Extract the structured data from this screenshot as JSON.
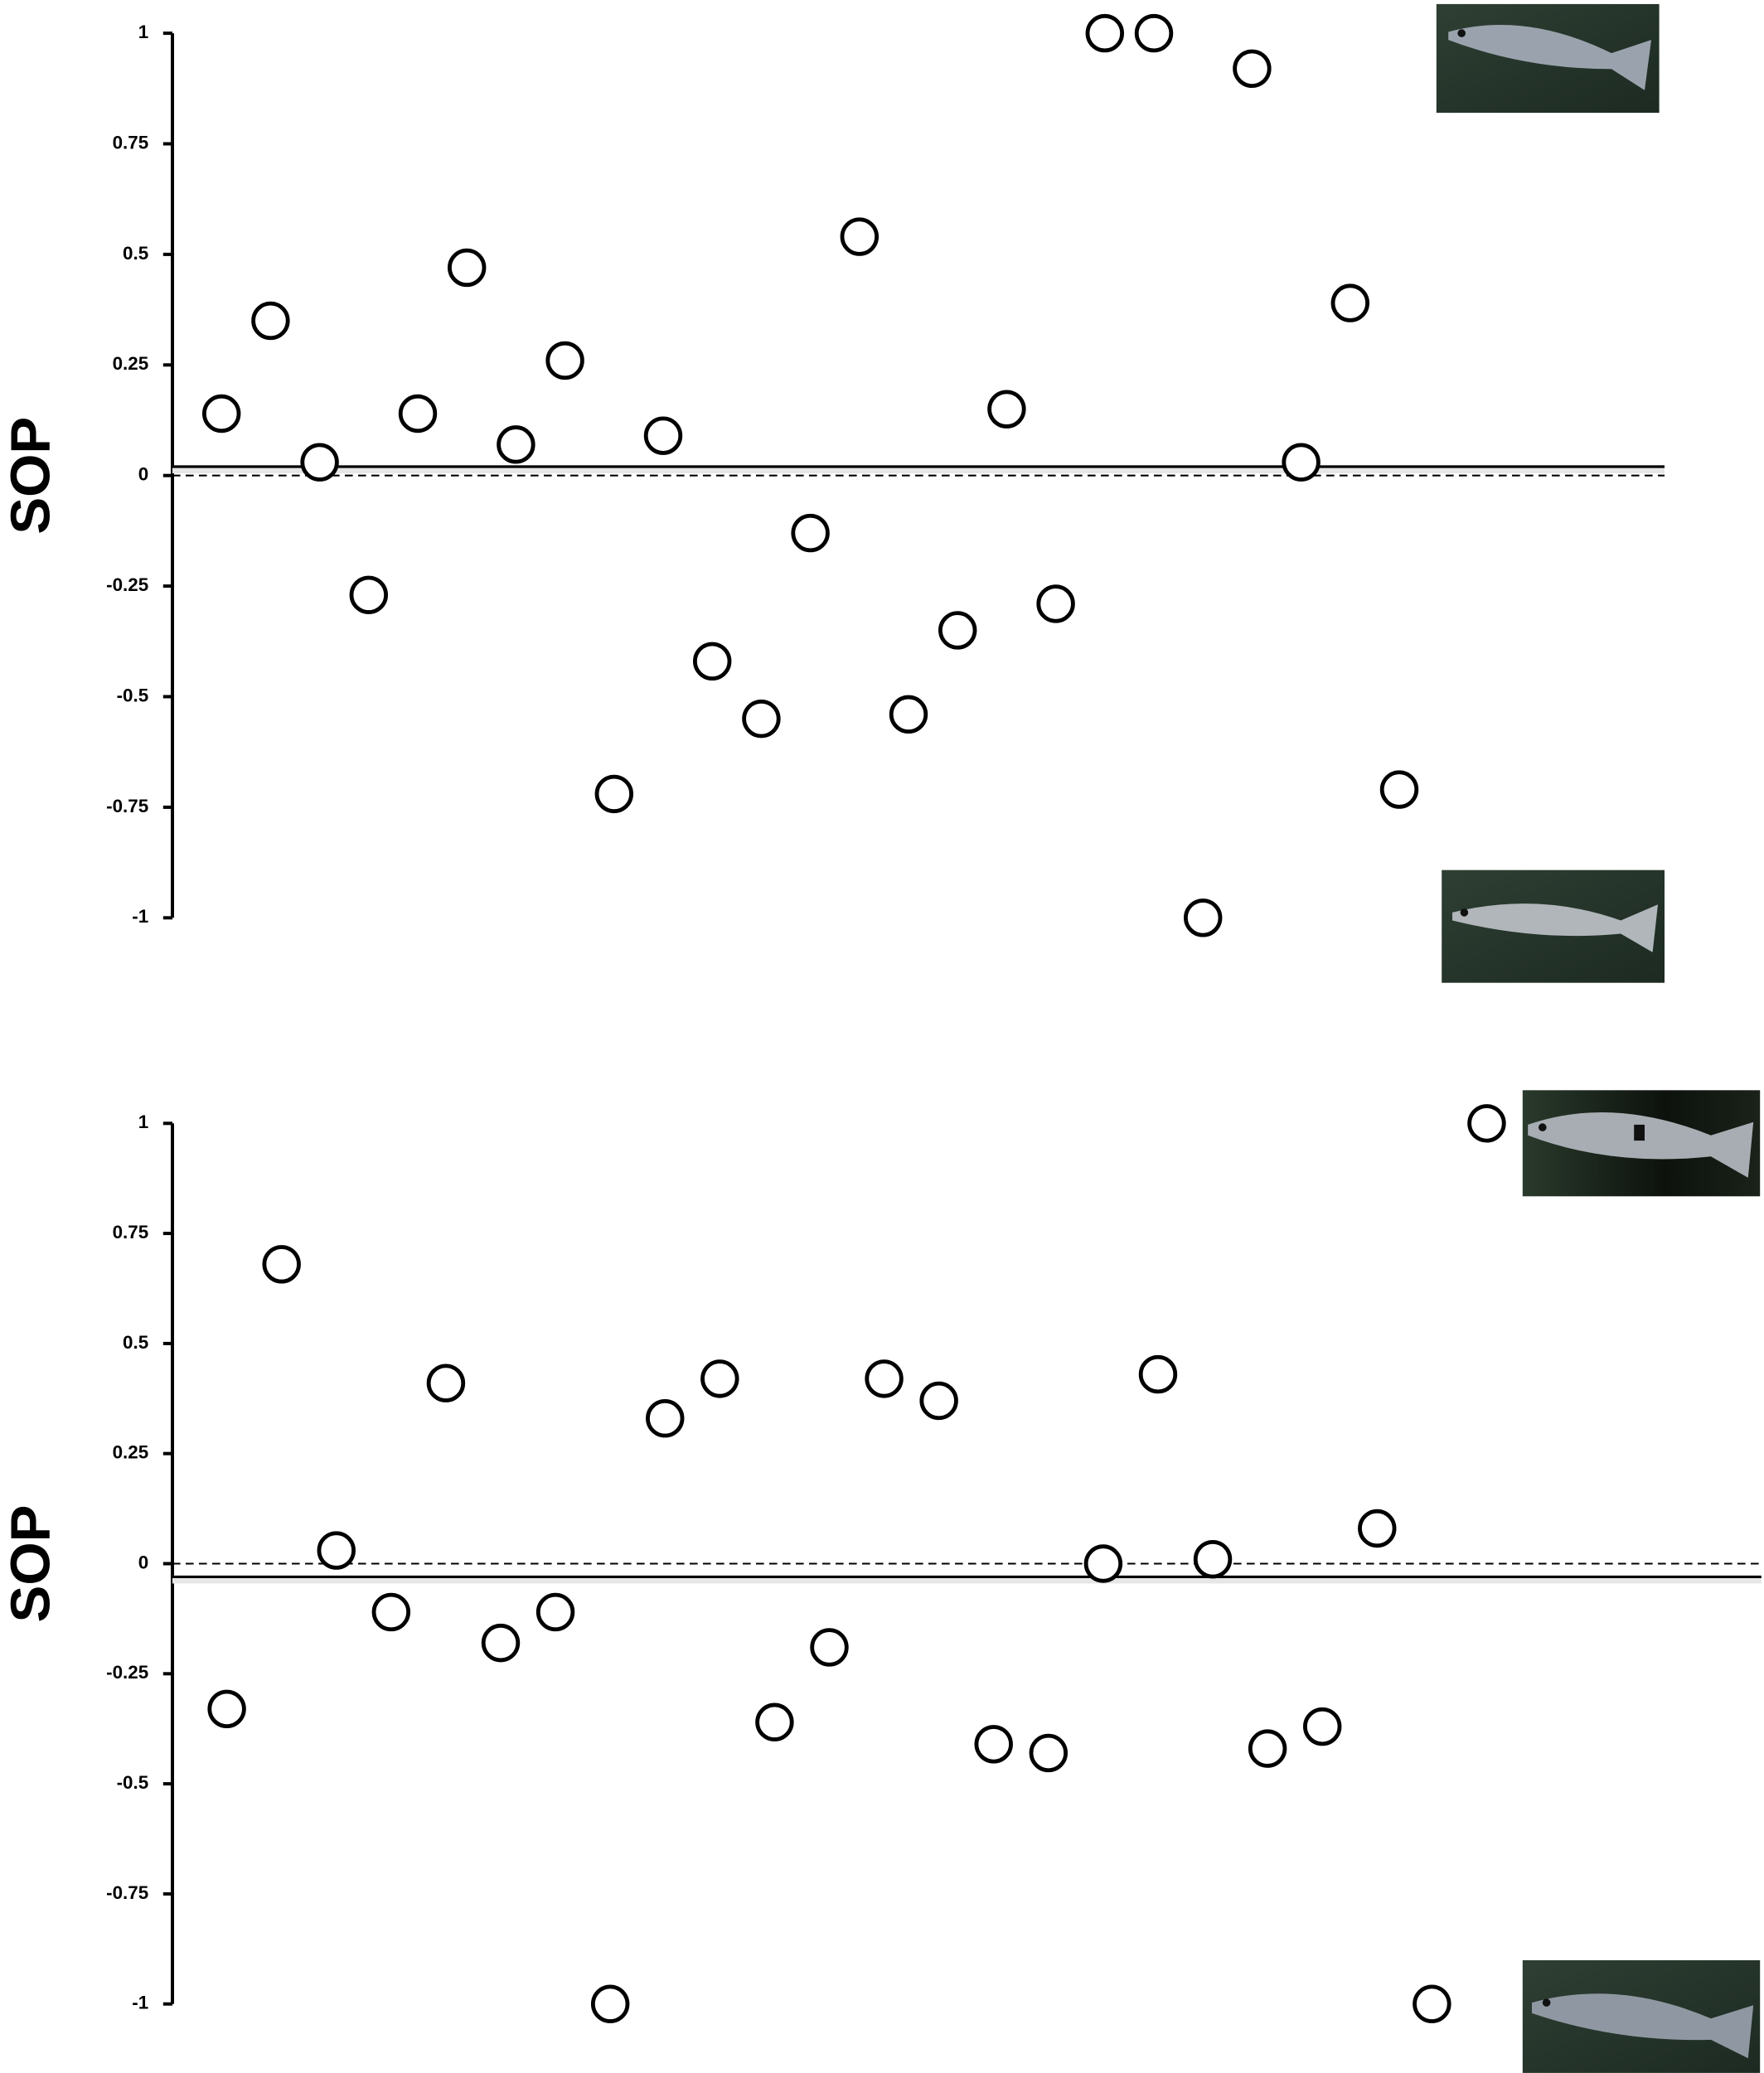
{
  "chart_data": [
    {
      "type": "scatter",
      "y_label": "SOP",
      "values": [
        0.14,
        0.35,
        0.03,
        -0.27,
        0.14,
        0.47,
        0.07,
        0.26,
        -0.72,
        0.09,
        -0.42,
        -0.55,
        -0.13,
        0.54,
        -0.54,
        -0.35,
        0.15,
        -0.29,
        1,
        1,
        -1,
        0.92,
        0.03,
        0.39,
        -0.71
      ],
      "mean": 0.02,
      "reference": 0,
      "ylim": [
        -1,
        1
      ],
      "yticks": [
        1,
        0.75,
        0.5,
        0.25,
        0,
        -0.25,
        -0.5,
        -0.75,
        -1
      ]
    },
    {
      "type": "scatter",
      "y_label": "SOP",
      "values": [
        -0.33,
        0.68,
        0.03,
        -0.11,
        0.41,
        -0.18,
        -0.11,
        -1,
        0.33,
        0.42,
        -0.36,
        -0.19,
        0.42,
        0.37,
        -0.41,
        -0.43,
        0,
        0.43,
        0.01,
        -0.42,
        -0.37,
        0.08,
        -1,
        1
      ],
      "mean": -0.03,
      "reference": 0,
      "ylim": [
        -1,
        1
      ],
      "yticks": [
        1,
        0.75,
        0.5,
        0.25,
        0,
        -0.25,
        -0.5,
        -0.75,
        -1
      ]
    }
  ]
}
